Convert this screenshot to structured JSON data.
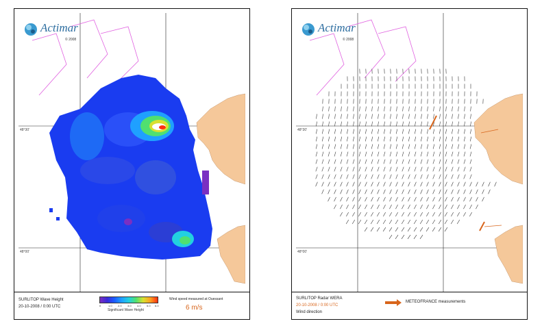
{
  "logo": {
    "name": "Actimar",
    "year": "© 2008"
  },
  "left_panel": {
    "footer_line1": "SURLITOP Wave Height",
    "footer_line2": "20-10-2008 / 0:00 UTC",
    "wind_label": "Wind speed measured at Ouessant",
    "wind_value": "6 m/s",
    "colorbar_ticks": [
      "0",
      "1.0",
      "2.0",
      "3.0",
      "4.0",
      "5.0",
      "6.0"
    ],
    "colorbar_label": "Significant Wave Height"
  },
  "right_panel": {
    "footer_line1": "SURLITOP Radar WERA",
    "footer_line2": "20-10-2008 / 0:00 UTC",
    "footer_line3": "Wind direction",
    "legend_label": "METEOFRANCE measurements"
  },
  "colors": {
    "land": "#f5c89a",
    "ocean": "#ffffff",
    "zone_lines": "#e060e0",
    "wave_low": "#1a3cf0",
    "wave_mid": "#1fa0ff",
    "wave_high": "#ff3010",
    "measurement_arrow": "#d8651b"
  },
  "icons": [
    "actimar-logo-icon",
    "wind-arrow-icon"
  ]
}
